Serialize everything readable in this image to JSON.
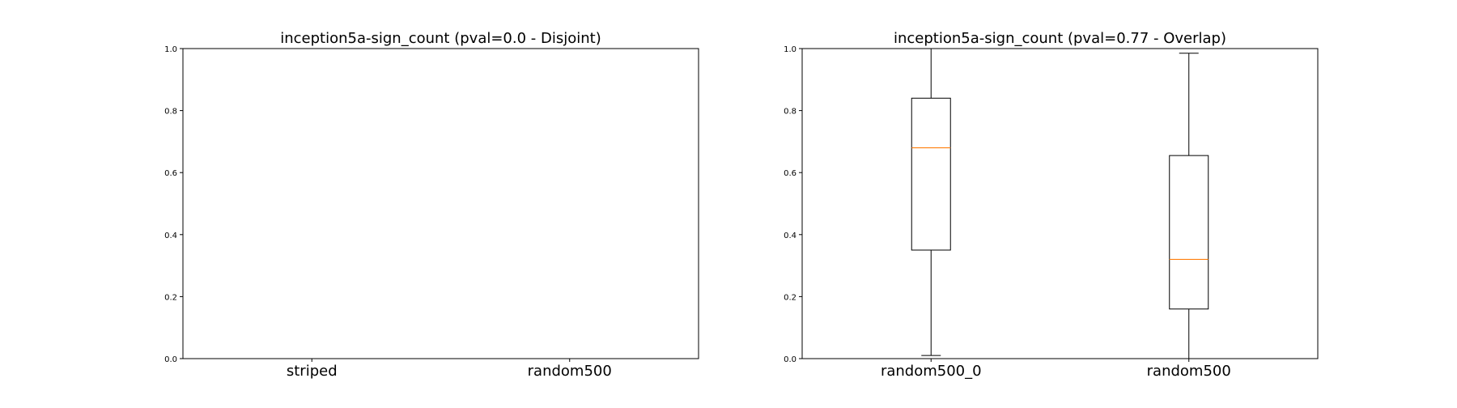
{
  "chart_data": [
    {
      "type": "box",
      "title": "inception5a-sign_count (pval=0.0 - Disjoint)",
      "xlabel": "",
      "ylabel": "",
      "categories": [
        "striped",
        "random500"
      ],
      "ylim": [
        0,
        1.0
      ],
      "yticks": [
        "0.0",
        "0.2",
        "0.4",
        "0.6",
        "0.8",
        "1.0"
      ],
      "boxes": [
        {
          "label": "striped"
        },
        {
          "label": "random500"
        }
      ],
      "grid": false
    },
    {
      "type": "box",
      "title": "inception5a-sign_count (pval=0.77 - Overlap)",
      "xlabel": "",
      "ylabel": "",
      "categories": [
        "random500_0",
        "random500"
      ],
      "ylim": [
        0,
        1.0
      ],
      "yticks": [
        "0.0",
        "0.2",
        "0.4",
        "0.6",
        "0.8",
        "1.0"
      ],
      "boxes": [
        {
          "label": "random500_0",
          "whisker_low": 0.01,
          "q1": 0.35,
          "median": 0.68,
          "q3": 0.84,
          "whisker_high": 1.0
        },
        {
          "label": "random500",
          "whisker_low": 0.0,
          "q1": 0.16,
          "median": 0.32,
          "q3": 0.655,
          "whisker_high": 0.985
        }
      ],
      "grid": false
    }
  ],
  "colors": {
    "box_edge": "#000000",
    "median": "#ff7f0e",
    "background": "#ffffff"
  }
}
